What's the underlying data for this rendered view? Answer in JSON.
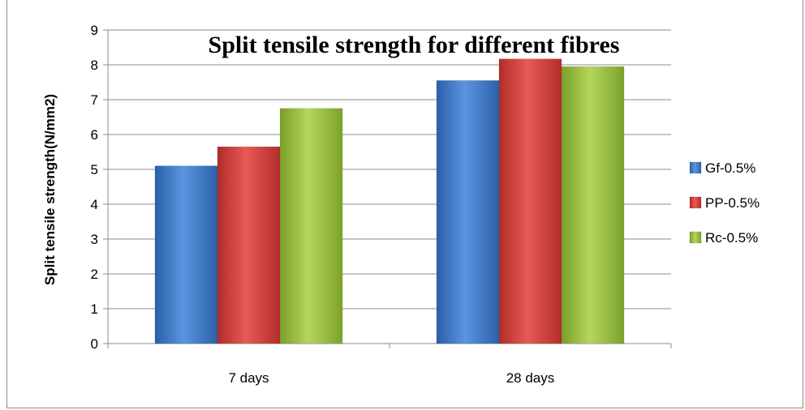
{
  "chart_data": {
    "type": "bar",
    "title": "Split tensile strength for different fibres",
    "xlabel": "",
    "ylabel": "Split tensile strength(N/mm2)",
    "categories": [
      "7 days",
      "28 days"
    ],
    "series": [
      {
        "name": "Gf-0.5%",
        "values": [
          5.1,
          7.55
        ],
        "color": "#3b78c8"
      },
      {
        "name": "PP-0.5%",
        "values": [
          5.65,
          8.17
        ],
        "color": "#d23f3b"
      },
      {
        "name": "Rc-0.5%",
        "values": [
          6.75,
          7.95
        ],
        "color": "#97bd3f"
      }
    ],
    "ylim": [
      0,
      9
    ],
    "yticks": [
      "0",
      "1",
      "2",
      "3",
      "4",
      "5",
      "6",
      "7",
      "8",
      "9"
    ],
    "grid": true,
    "legend": "right"
  }
}
